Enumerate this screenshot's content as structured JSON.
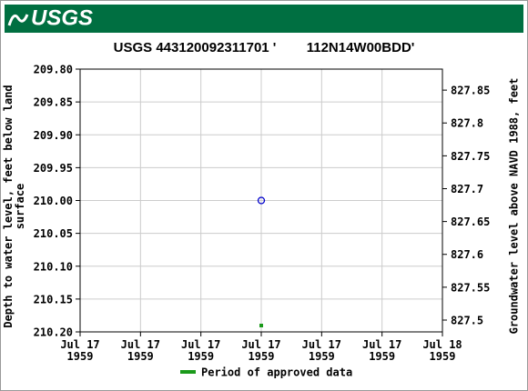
{
  "header": {
    "logo": "USGS"
  },
  "chart_data": {
    "type": "scatter",
    "title": "USGS 443120092311701 '        112N14W00BDD'",
    "y_label": "Depth to water level, feet below land surface",
    "y2_label": "Groundwater level above NAVD 1988, feet",
    "xlim": [
      "1959-07-17T00:00",
      "1959-07-18T00:00"
    ],
    "xticks": [
      {
        "value": "1959-07-17T00:00",
        "label": "Jul 17 1959"
      },
      {
        "value": "1959-07-17T04:00",
        "label": "Jul 17 1959"
      },
      {
        "value": "1959-07-17T08:00",
        "label": "Jul 17 1959"
      },
      {
        "value": "1959-07-17T12:00",
        "label": "Jul 17 1959"
      },
      {
        "value": "1959-07-17T16:00",
        "label": "Jul 17 1959"
      },
      {
        "value": "1959-07-17T20:00",
        "label": "Jul 17 1959"
      },
      {
        "value": "1959-07-18T00:00",
        "label": "Jul 18 1959"
      }
    ],
    "ylim": [
      210.2,
      209.8
    ],
    "yticks": [
      {
        "value": 209.8,
        "label": "209.80"
      },
      {
        "value": 209.85,
        "label": "209.85"
      },
      {
        "value": 209.9,
        "label": "209.90"
      },
      {
        "value": 209.95,
        "label": "209.95"
      },
      {
        "value": 210.0,
        "label": "210.00"
      },
      {
        "value": 210.05,
        "label": "210.05"
      },
      {
        "value": 210.1,
        "label": "210.10"
      },
      {
        "value": 210.15,
        "label": "210.15"
      },
      {
        "value": 210.2,
        "label": "210.20"
      }
    ],
    "y2lim": [
      827.482,
      827.882
    ],
    "y2ticks": [
      827.5,
      827.55,
      827.6,
      827.65,
      827.7,
      827.75,
      827.8,
      827.85
    ],
    "grid": true,
    "series": [
      {
        "name": "Depth to water level",
        "color": "#0000cc",
        "x": [
          "1959-07-17T12:00"
        ],
        "values": [
          210.0
        ]
      }
    ],
    "approved_period": {
      "name": "Period of approved data",
      "color": "#1a9a1a",
      "x": [
        "1959-07-17T12:00"
      ]
    }
  }
}
